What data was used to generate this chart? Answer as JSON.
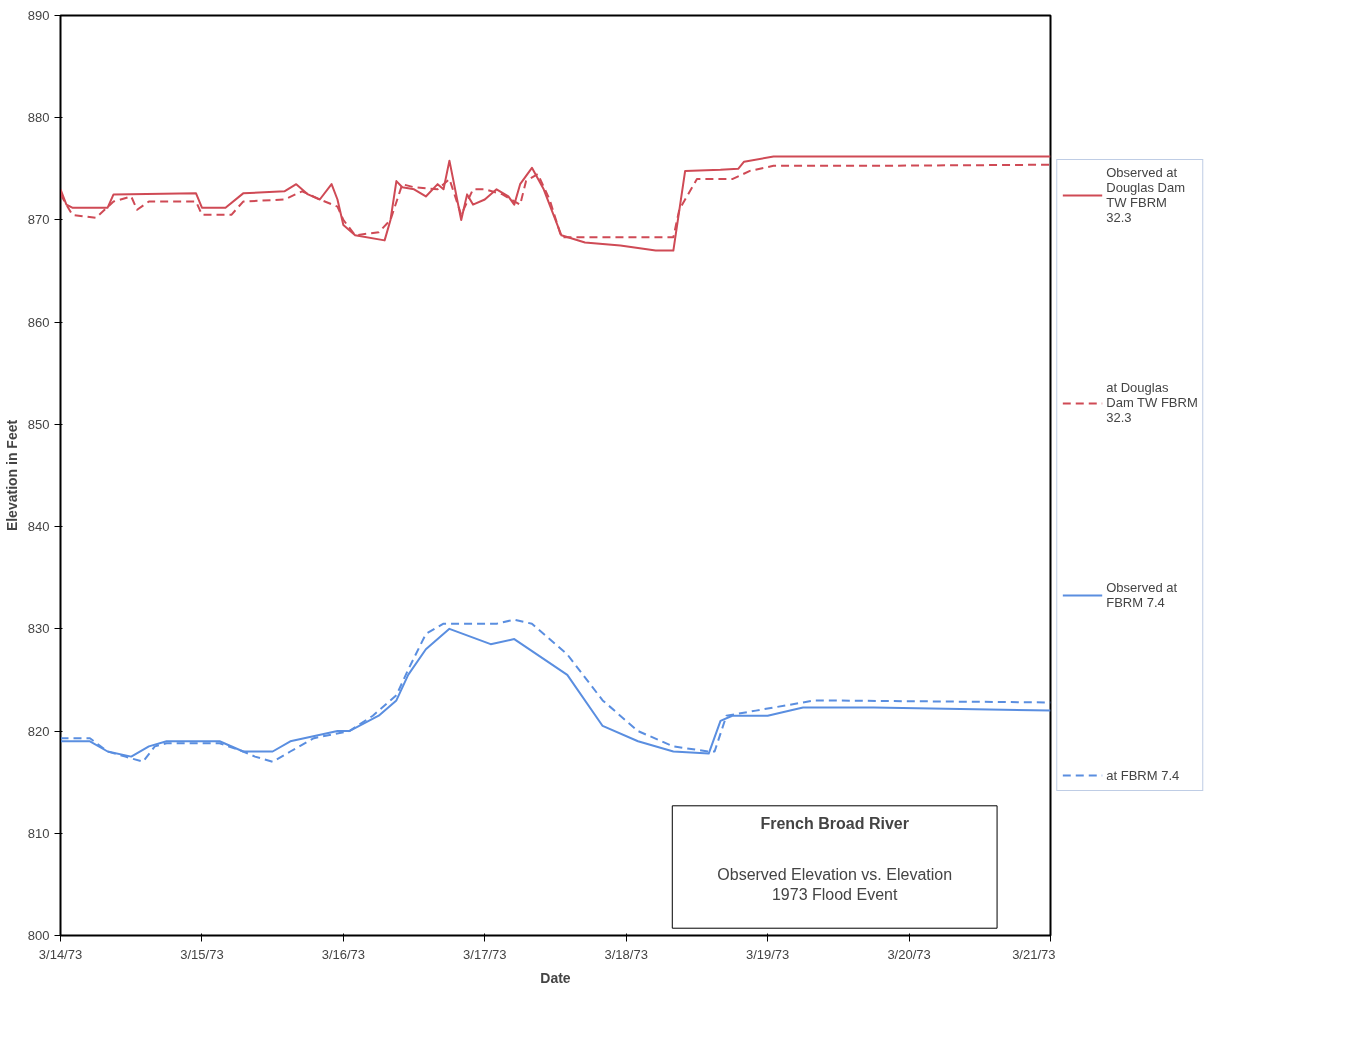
{
  "chart_data": {
    "type": "line",
    "title": "French Broad River",
    "subtitle": "Observed Elevation vs. Elevation\n1973 Flood Event",
    "xlabel": "Date",
    "ylabel": "Elevation in Feet",
    "xlim": [
      "1973-03-14",
      "1973-03-21"
    ],
    "xticks": [
      {
        "value": "1973-03-14",
        "label": "3/14/73"
      },
      {
        "value": "1973-03-15",
        "label": "3/15/73"
      },
      {
        "value": "1973-03-16",
        "label": "3/16/73"
      },
      {
        "value": "1973-03-17",
        "label": "3/17/73"
      },
      {
        "value": "1973-03-18",
        "label": "3/18/73"
      },
      {
        "value": "1973-03-19",
        "label": "3/19/73"
      },
      {
        "value": "1973-03-20",
        "label": "3/20/73"
      },
      {
        "value": "1973-03-21",
        "label": "3/21/73"
      }
    ],
    "ylim": [
      800,
      890
    ],
    "yticks": [
      800,
      810,
      820,
      830,
      840,
      850,
      860,
      870,
      880,
      890
    ],
    "grid": false,
    "legend": "right",
    "marker": "none",
    "series": [
      {
        "name": "Observed at Douglas Dam TW FBRM 32.3",
        "color": "#cf4a55",
        "line_style": "solid",
        "x": [
          "1973-03-14T00:00",
          "1973-03-14T01:00",
          "1973-03-14T02:00",
          "1973-03-14T08:00",
          "1973-03-14T09:00",
          "1973-03-14T23:00",
          "1973-03-15T00:00",
          "1973-03-15T04:00",
          "1973-03-15T07:00",
          "1973-03-15T14:00",
          "1973-03-15T16:00",
          "1973-03-15T18:00",
          "1973-03-15T20:00",
          "1973-03-15T22:00",
          "1973-03-15T23:00",
          "1973-03-16T00:00",
          "1973-03-16T02:00",
          "1973-03-16T07:00",
          "1973-03-16T08:00",
          "1973-03-16T09:00",
          "1973-03-16T10:00",
          "1973-03-16T12:00",
          "1973-03-16T14:00",
          "1973-03-16T16:00",
          "1973-03-16T17:00",
          "1973-03-16T18:00",
          "1973-03-16T20:00",
          "1973-03-16T21:00",
          "1973-03-16T22:00",
          "1973-03-17T00:00",
          "1973-03-17T02:00",
          "1973-03-17T04:00",
          "1973-03-17T05:00",
          "1973-03-17T06:00",
          "1973-03-17T08:00",
          "1973-03-17T10:00",
          "1973-03-17T13:00",
          "1973-03-17T17:00",
          "1973-03-17T23:00",
          "1973-03-18T05:00",
          "1973-03-18T08:00",
          "1973-03-18T10:00",
          "1973-03-18T16:00",
          "1973-03-18T19:00",
          "1973-03-18T20:00",
          "1973-03-19T01:00",
          "1973-03-19T18:00",
          "1973-03-21T00:00"
        ],
        "values": [
          873,
          871.5,
          871.2,
          871.2,
          872.5,
          872.6,
          871.2,
          871.2,
          872.6,
          872.8,
          873.5,
          872.5,
          872,
          873.5,
          872,
          869.5,
          868.5,
          868,
          870,
          873.8,
          873.2,
          873,
          872.3,
          873.5,
          873,
          875.8,
          870,
          872.5,
          871.5,
          872,
          873,
          872.3,
          871.5,
          873.5,
          875.1,
          873,
          868.5,
          867.8,
          867.5,
          867,
          867,
          874.8,
          874.9,
          875,
          875.7,
          876.2,
          876.2,
          876.2
        ]
      },
      {
        "name": "at Douglas Dam TW FBRM 32.3",
        "color": "#cf4a55",
        "line_style": "dashed",
        "x": [
          "1973-03-14T00:00",
          "1973-03-14T02:00",
          "1973-03-14T06:00",
          "1973-03-14T09:00",
          "1973-03-14T12:00",
          "1973-03-14T13:00",
          "1973-03-14T15:00",
          "1973-03-14T23:00",
          "1973-03-15T00:00",
          "1973-03-15T05:00",
          "1973-03-15T07:00",
          "1973-03-15T14:00",
          "1973-03-15T17:00",
          "1973-03-15T20:00",
          "1973-03-15T23:00",
          "1973-03-16T00:00",
          "1973-03-16T02:00",
          "1973-03-16T06:00",
          "1973-03-16T08:00",
          "1973-03-16T10:00",
          "1973-03-16T12:00",
          "1973-03-16T16:00",
          "1973-03-16T18:00",
          "1973-03-16T20:00",
          "1973-03-16T22:00",
          "1973-03-17T00:00",
          "1973-03-17T03:00",
          "1973-03-17T06:00",
          "1973-03-17T07:00",
          "1973-03-17T09:00",
          "1973-03-17T11:00",
          "1973-03-17T13:00",
          "1973-03-17T20:00",
          "1973-03-18T08:00",
          "1973-03-18T09:00",
          "1973-03-18T12:00",
          "1973-03-18T18:00",
          "1973-03-18T21:00",
          "1973-03-19T01:00",
          "1973-03-19T18:00",
          "1973-03-21T00:00"
        ],
        "values": [
          872.5,
          870.5,
          870.2,
          871.8,
          872.3,
          871,
          871.8,
          871.8,
          870.5,
          870.5,
          871.8,
          872,
          872.8,
          872,
          871.3,
          870,
          868.5,
          868.8,
          870,
          873.5,
          873.2,
          873,
          874,
          870.5,
          873,
          873,
          872.5,
          871.5,
          873.8,
          874.5,
          872,
          868.3,
          868.3,
          868.3,
          871,
          874,
          874,
          874.8,
          875.3,
          875.3,
          875.4
        ]
      },
      {
        "name": "Observed at FBRM 7.4",
        "color": "#5a8ee0",
        "line_style": "solid",
        "x": [
          "1973-03-14T00:00",
          "1973-03-14T05:00",
          "1973-03-14T08:00",
          "1973-03-14T12:00",
          "1973-03-14T15:00",
          "1973-03-14T18:00",
          "1973-03-15T03:00",
          "1973-03-15T07:00",
          "1973-03-15T12:00",
          "1973-03-15T15:00",
          "1973-03-15T23:00",
          "1973-03-16T01:00",
          "1973-03-16T06:00",
          "1973-03-16T09:00",
          "1973-03-16T11:00",
          "1973-03-16T14:00",
          "1973-03-16T18:00",
          "1973-03-17T01:00",
          "1973-03-17T05:00",
          "1973-03-17T14:00",
          "1973-03-17T20:00",
          "1973-03-18T02:00",
          "1973-03-18T08:00",
          "1973-03-18T14:00",
          "1973-03-18T16:00",
          "1973-03-18T18:00",
          "1973-03-19T00:00",
          "1973-03-19T06:00",
          "1973-03-19T18:00",
          "1973-03-21T00:00"
        ],
        "values": [
          819,
          819,
          818,
          817.5,
          818.5,
          819,
          819,
          818,
          818,
          819,
          820,
          820,
          821.5,
          823,
          825.5,
          828,
          830,
          828.5,
          829,
          825.5,
          820.5,
          819,
          818,
          817.8,
          821,
          821.5,
          821.5,
          822.3,
          822.3,
          822
        ]
      },
      {
        "name": "at FBRM 7.4",
        "color": "#5a8ee0",
        "line_style": "dashed",
        "x": [
          "1973-03-14T00:00",
          "1973-03-14T05:00",
          "1973-03-14T08:00",
          "1973-03-14T11:00",
          "1973-03-14T14:00",
          "1973-03-14T16:00",
          "1973-03-14T18:00",
          "1973-03-15T03:00",
          "1973-03-15T07:00",
          "1973-03-15T09:00",
          "1973-03-15T12:00",
          "1973-03-15T15:00",
          "1973-03-15T19:00",
          "1973-03-16T01:00",
          "1973-03-16T05:00",
          "1973-03-16T09:00",
          "1973-03-16T11:00",
          "1973-03-16T14:00",
          "1973-03-16T17:00",
          "1973-03-17T02:00",
          "1973-03-17T05:00",
          "1973-03-17T08:00",
          "1973-03-17T14:00",
          "1973-03-17T20:00",
          "1973-03-18T02:00",
          "1973-03-18T08:00",
          "1973-03-18T14:00",
          "1973-03-18T15:00",
          "1973-03-18T17:00",
          "1973-03-18T22:00",
          "1973-03-19T08:00",
          "1973-03-21T00:00"
        ],
        "values": [
          819.3,
          819.3,
          818,
          817.5,
          817,
          818.5,
          818.8,
          818.8,
          818,
          817.5,
          817,
          818,
          819.3,
          820,
          821.5,
          823.5,
          826,
          829.5,
          830.5,
          830.5,
          830.9,
          830.5,
          827.5,
          823,
          820,
          818.5,
          818,
          818,
          821.5,
          822,
          823,
          822.8
        ]
      }
    ]
  }
}
